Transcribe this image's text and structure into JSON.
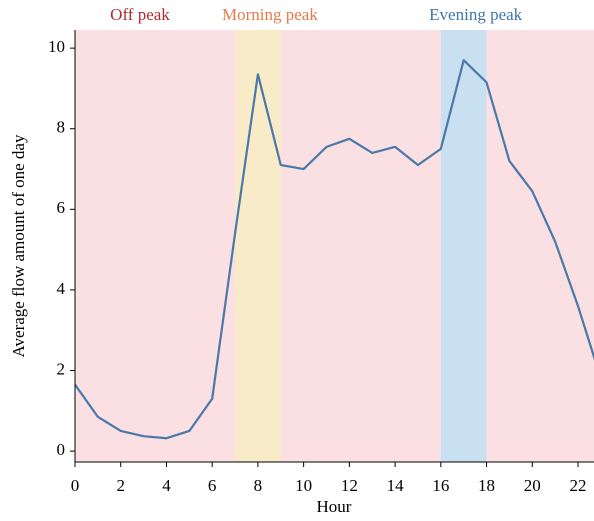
{
  "chart_data": {
    "type": "line",
    "xlabel": "Hour",
    "ylabel": "Average flow amount of one day",
    "x": [
      0,
      1,
      2,
      3,
      4,
      5,
      6,
      7,
      8,
      9,
      10,
      11,
      12,
      13,
      14,
      15,
      16,
      17,
      18,
      19,
      20,
      21,
      22,
      23
    ],
    "series": [
      {
        "color": "#4a78a8",
        "values": [
          1.65,
          0.85,
          0.5,
          0.37,
          0.32,
          0.5,
          1.3,
          5.4,
          9.35,
          7.1,
          7.0,
          7.55,
          7.75,
          7.4,
          7.55,
          7.1,
          7.5,
          9.7,
          9.15,
          7.2,
          6.45,
          5.2,
          3.6,
          1.8
        ]
      }
    ],
    "regions": [
      {
        "label": "Off peak",
        "start": 0,
        "end": 23,
        "color": "#fadfe3",
        "label_color": "#b22a2e"
      },
      {
        "label": "Morning peak",
        "start": 7,
        "end": 9,
        "color": "#f7ebc8",
        "label_color": "#e8784a"
      },
      {
        "label": "Evening peak",
        "start": 16,
        "end": 18,
        "color": "#c8e0ef",
        "label_color": "#3e76a8"
      }
    ],
    "xlim": [
      0,
      22.7
    ],
    "ylim": [
      -0.27,
      10.45
    ],
    "xticks": [
      0,
      2,
      4,
      6,
      8,
      10,
      12,
      14,
      16,
      18,
      20,
      22
    ],
    "yticks": [
      0,
      2,
      4,
      6,
      8,
      10
    ]
  }
}
